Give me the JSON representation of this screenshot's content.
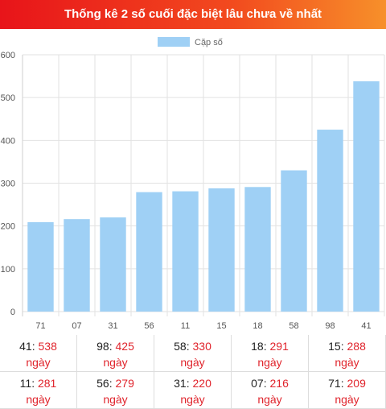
{
  "title": "Thống kê 2 số cuối đặc biệt lâu chưa về nhất",
  "chart_data": {
    "type": "bar",
    "categories": [
      "71",
      "07",
      "31",
      "56",
      "11",
      "15",
      "18",
      "58",
      "98",
      "41"
    ],
    "series": [
      {
        "name": "Cặp số",
        "values": [
          209,
          216,
          220,
          279,
          281,
          288,
          291,
          330,
          425,
          538
        ]
      }
    ],
    "ylim": [
      0,
      600
    ],
    "yticks": [
      "0",
      "100",
      "200",
      "300",
      "400",
      "500",
      "600"
    ],
    "legend_position": "top-center",
    "bar_color": "#9fd0f5",
    "grid": true
  },
  "table": {
    "unit": "ngày",
    "rows": [
      [
        {
          "num": "41",
          "val": "538"
        },
        {
          "num": "98",
          "val": "425"
        },
        {
          "num": "58",
          "val": "330"
        },
        {
          "num": "18",
          "val": "291"
        },
        {
          "num": "15",
          "val": "288"
        }
      ],
      [
        {
          "num": "11",
          "val": "281"
        },
        {
          "num": "56",
          "val": "279"
        },
        {
          "num": "31",
          "val": "220"
        },
        {
          "num": "07",
          "val": "216"
        },
        {
          "num": "71",
          "val": "209"
        }
      ]
    ]
  },
  "colors": {
    "header_start": "#e8141a",
    "header_end": "#f7902a",
    "value_red": "#e0242c"
  }
}
